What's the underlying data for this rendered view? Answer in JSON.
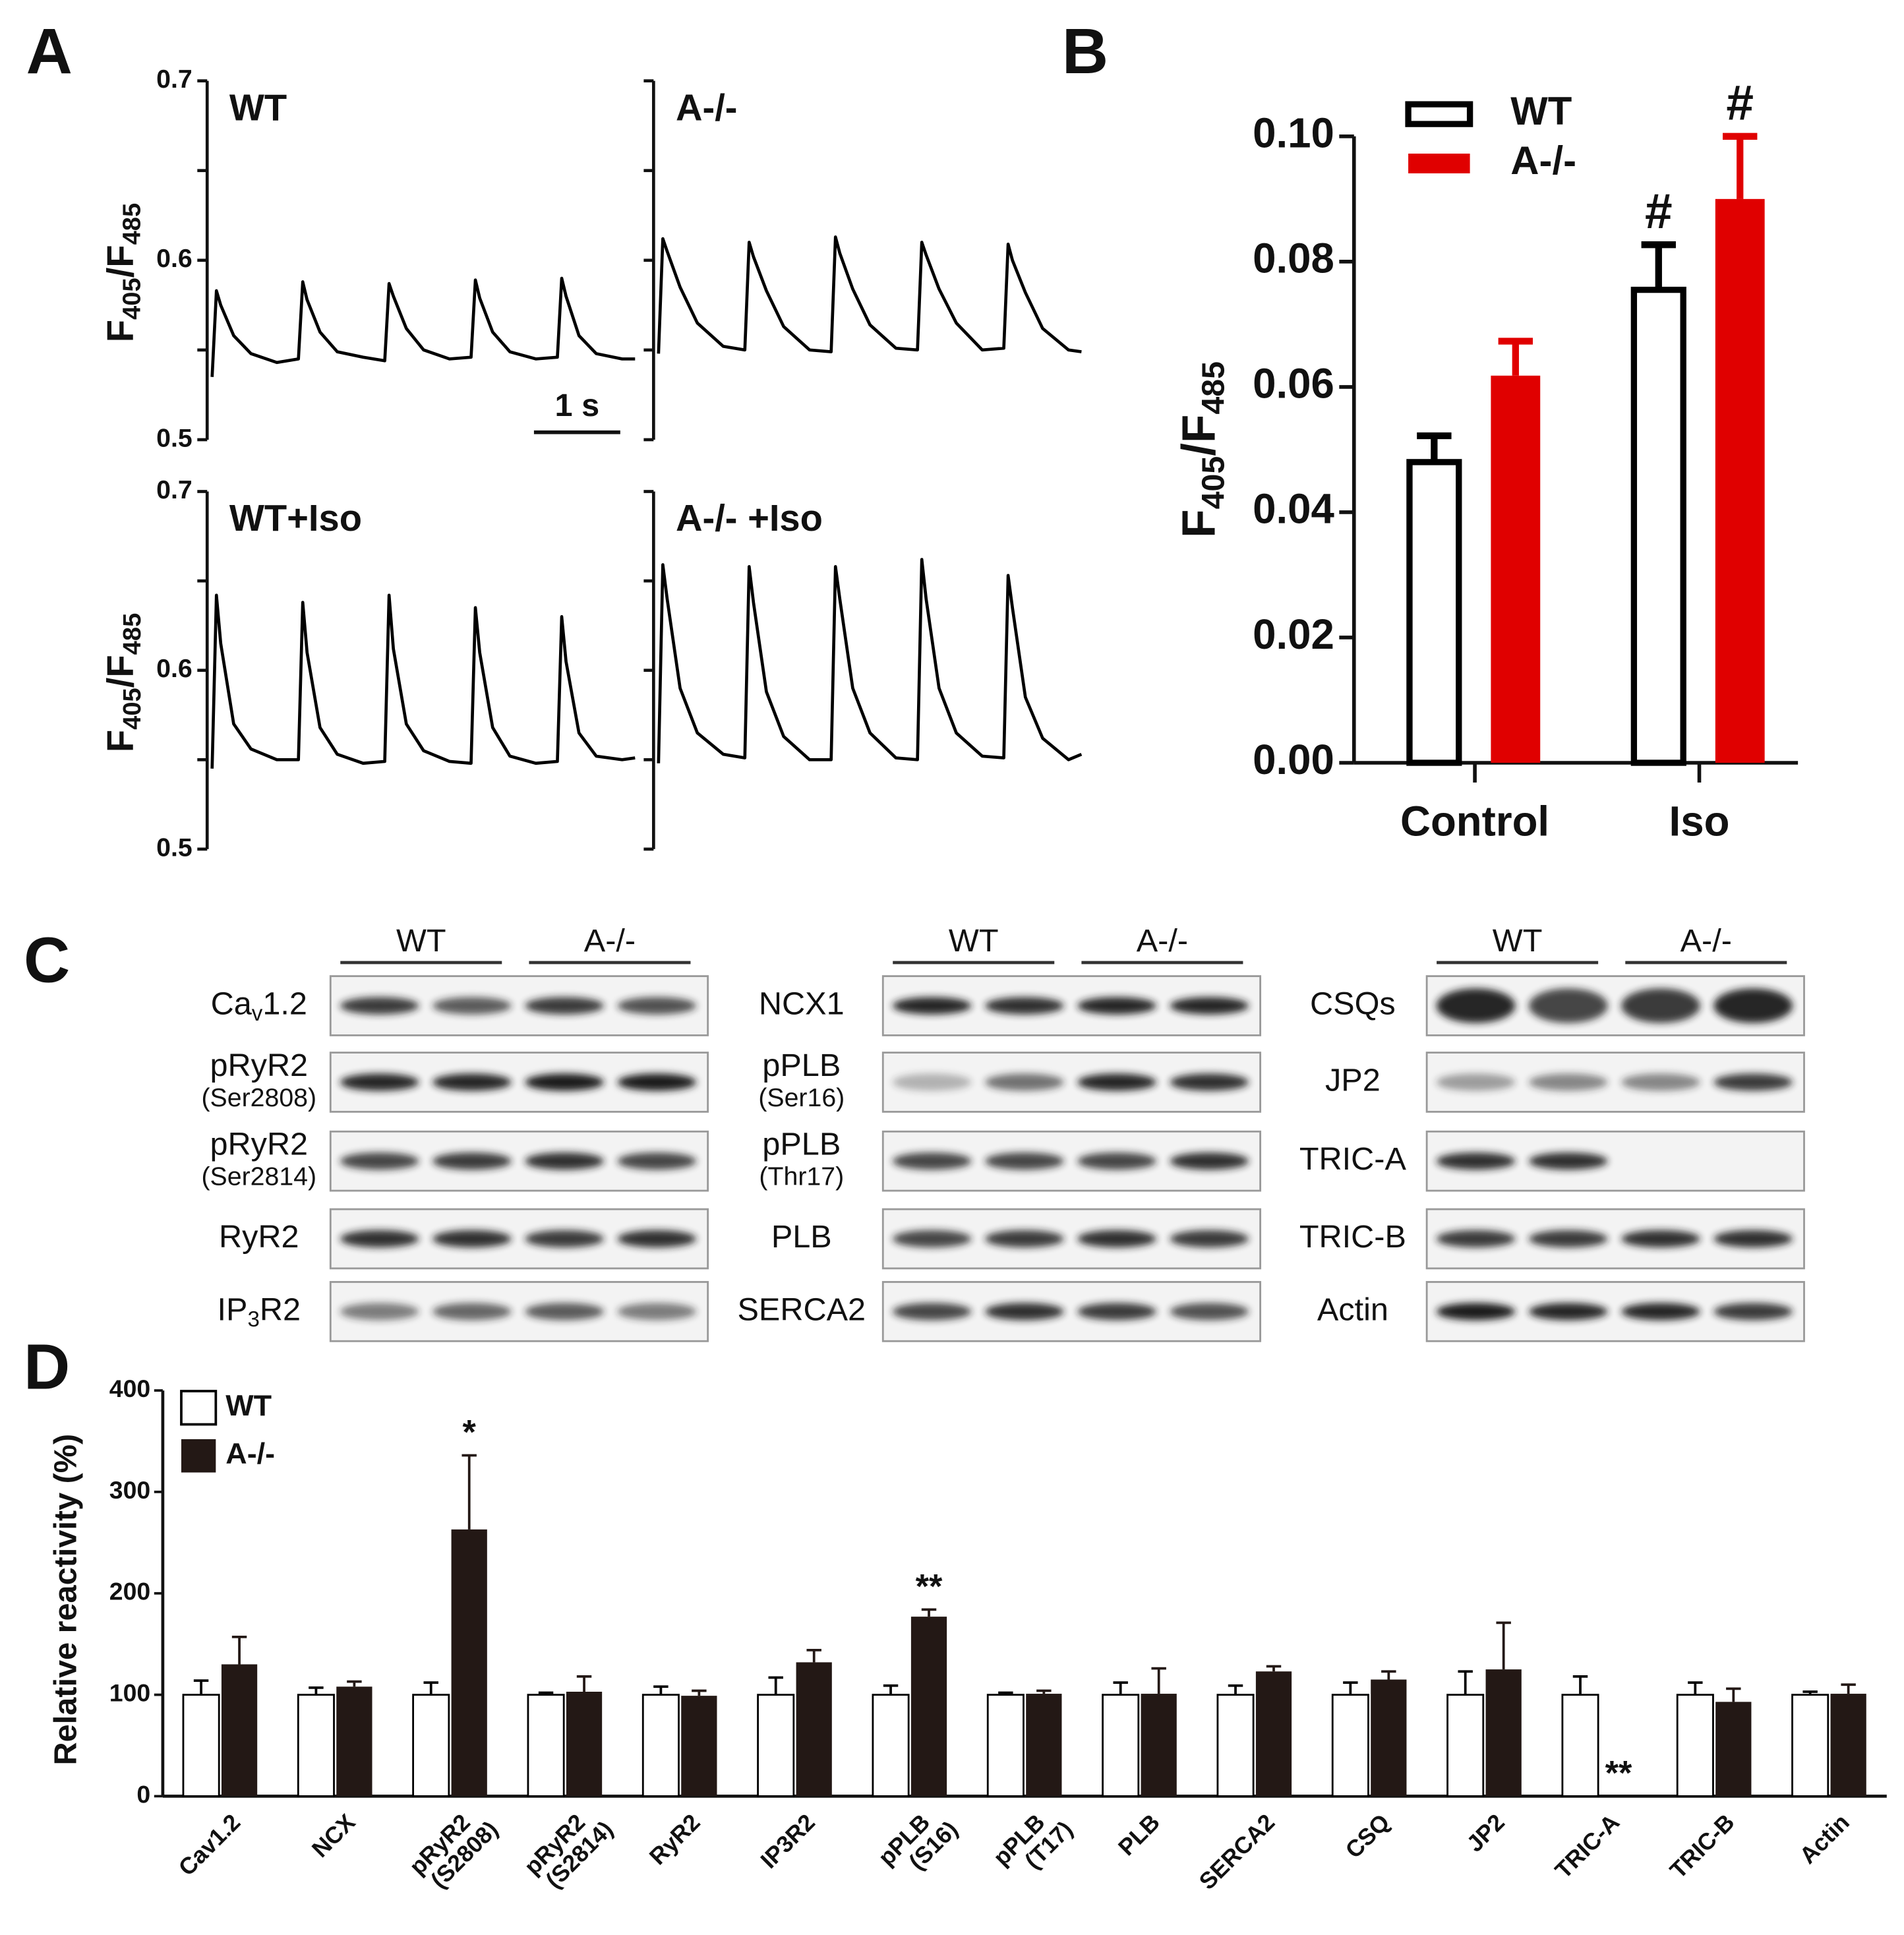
{
  "panels": [
    "A",
    "B",
    "C",
    "D"
  ],
  "chart_data": [
    {
      "type": "line",
      "title": "WT",
      "ylabel": [
        "F",
        "405",
        "/F",
        "485"
      ],
      "color": "#000000",
      "tick_labels": true,
      "xlim": [
        0,
        4.9
      ],
      "ylim": [
        0.5,
        0.7
      ],
      "yticks": [
        0.5,
        0.6,
        0.7
      ],
      "minor_yticks": [
        0.55,
        0.65
      ],
      "scale_bar": {
        "length": 1,
        "label": "1 s"
      },
      "x": [
        0,
        0.05,
        0.1,
        0.25,
        0.45,
        0.75,
        1,
        1.05,
        1.1,
        1.25,
        1.45,
        1.75,
        2,
        2.05,
        2.1,
        2.25,
        2.45,
        2.75,
        3,
        3.05,
        3.1,
        3.25,
        3.45,
        3.75,
        4,
        4.05,
        4.1,
        4.25,
        4.45,
        4.75,
        4.9
      ],
      "values": [
        0.535,
        0.583,
        0.575,
        0.558,
        0.548,
        0.543,
        0.545,
        0.588,
        0.578,
        0.56,
        0.549,
        0.546,
        0.544,
        0.587,
        0.58,
        0.562,
        0.55,
        0.545,
        0.546,
        0.589,
        0.579,
        0.56,
        0.549,
        0.545,
        0.546,
        0.59,
        0.58,
        0.558,
        0.548,
        0.545,
        0.545
      ]
    },
    {
      "type": "line",
      "title": "A-/-",
      "color": "#000000",
      "tick_labels": false,
      "xlim": [
        0,
        4.9
      ],
      "ylim": [
        0.5,
        0.7
      ],
      "yticks": [
        0.5,
        0.6,
        0.7
      ],
      "minor_yticks": [
        0.55,
        0.65
      ],
      "x": [
        0,
        0.05,
        0.1,
        0.25,
        0.45,
        0.75,
        1,
        1.05,
        1.1,
        1.25,
        1.45,
        1.75,
        2,
        2.05,
        2.1,
        2.25,
        2.45,
        2.75,
        3,
        3.05,
        3.1,
        3.25,
        3.45,
        3.75,
        4,
        4.05,
        4.1,
        4.25,
        4.45,
        4.75,
        4.9
      ],
      "values": [
        0.548,
        0.612,
        0.605,
        0.585,
        0.565,
        0.552,
        0.55,
        0.61,
        0.602,
        0.583,
        0.563,
        0.55,
        0.549,
        0.613,
        0.604,
        0.584,
        0.564,
        0.551,
        0.55,
        0.61,
        0.603,
        0.584,
        0.565,
        0.55,
        0.551,
        0.609,
        0.6,
        0.582,
        0.562,
        0.55,
        0.549
      ]
    },
    {
      "type": "line",
      "title": "WT+Iso",
      "ylabel": [
        "F",
        "405",
        "/F",
        "485"
      ],
      "color": "#000000",
      "tick_labels": true,
      "xlim": [
        0,
        4.9
      ],
      "ylim": [
        0.5,
        0.7
      ],
      "yticks": [
        0.5,
        0.6,
        0.7
      ],
      "minor_yticks": [
        0.55,
        0.65
      ],
      "x": [
        0,
        0.05,
        0.1,
        0.25,
        0.45,
        0.75,
        1,
        1.05,
        1.1,
        1.25,
        1.45,
        1.75,
        2,
        2.05,
        2.1,
        2.25,
        2.45,
        2.75,
        3,
        3.05,
        3.1,
        3.25,
        3.45,
        3.75,
        4,
        4.05,
        4.1,
        4.25,
        4.45,
        4.75,
        4.9
      ],
      "values": [
        0.545,
        0.642,
        0.615,
        0.57,
        0.556,
        0.55,
        0.55,
        0.638,
        0.61,
        0.568,
        0.553,
        0.548,
        0.549,
        0.642,
        0.612,
        0.57,
        0.555,
        0.549,
        0.548,
        0.635,
        0.61,
        0.568,
        0.552,
        0.548,
        0.549,
        0.63,
        0.605,
        0.565,
        0.552,
        0.55,
        0.551
      ]
    },
    {
      "type": "line",
      "title": "A-/- +Iso",
      "color": "#000000",
      "tick_labels": false,
      "xlim": [
        0,
        4.9
      ],
      "ylim": [
        0.5,
        0.7
      ],
      "yticks": [
        0.5,
        0.6,
        0.7
      ],
      "minor_yticks": [
        0.55,
        0.65
      ],
      "x": [
        0,
        0.05,
        0.1,
        0.25,
        0.45,
        0.75,
        1,
        1.05,
        1.1,
        1.25,
        1.45,
        1.75,
        2,
        2.05,
        2.1,
        2.25,
        2.45,
        2.75,
        3,
        3.05,
        3.1,
        3.25,
        3.45,
        3.75,
        4,
        4.05,
        4.1,
        4.25,
        4.45,
        4.75,
        4.9
      ],
      "values": [
        0.548,
        0.659,
        0.64,
        0.59,
        0.565,
        0.553,
        0.551,
        0.658,
        0.638,
        0.588,
        0.563,
        0.55,
        0.55,
        0.658,
        0.64,
        0.59,
        0.565,
        0.551,
        0.55,
        0.662,
        0.64,
        0.59,
        0.565,
        0.552,
        0.551,
        0.653,
        0.635,
        0.585,
        0.562,
        0.55,
        0.553
      ]
    },
    {
      "type": "bar",
      "categories": [
        "Control",
        "Iso"
      ],
      "ylabel": [
        "F",
        "405",
        "/F",
        "485"
      ],
      "ylim": [
        0,
        0.1
      ],
      "yticks": [
        {
          "value": 0,
          "label": "0.00"
        },
        0.02,
        0.04,
        0.06,
        0.08,
        {
          "value": 0.1,
          "label": "0.10"
        }
      ],
      "legend": "top-left",
      "series": [
        {
          "name": "WT",
          "color": "#ffffff",
          "stroke": "#000000",
          "values": [
            0.048,
            0.0755
          ],
          "errors": [
            0.0042,
            0.0072
          ],
          "significance": [
            null,
            "#"
          ]
        },
        {
          "name": "A-/-",
          "color": "#e00000",
          "values": [
            0.0618,
            0.09
          ],
          "errors": [
            0.0055,
            0.01
          ],
          "significance": [
            null,
            "#"
          ]
        }
      ]
    },
    {
      "type": "bar",
      "ylabel": "Relative reactivity (%)",
      "ylim": [
        0,
        400
      ],
      "yticks": [
        0,
        100,
        200,
        300,
        400
      ],
      "legend": "top-left",
      "categories": [
        [
          "Cav1.2"
        ],
        [
          "NCX"
        ],
        [
          "pRyR2",
          "(S2808)"
        ],
        [
          "pRyR2",
          "(S2814)"
        ],
        [
          "RyR2"
        ],
        [
          "IP3R2"
        ],
        [
          "pPLB",
          "(S16)"
        ],
        [
          "pPLB",
          "(T17)"
        ],
        [
          "PLB"
        ],
        [
          "SERCA2"
        ],
        [
          "CSQ"
        ],
        [
          "JP2"
        ],
        [
          "TRIC-A"
        ],
        [
          "TRIC-B"
        ],
        [
          "Actin"
        ]
      ],
      "series": [
        {
          "name": "WT",
          "color": "#ffffff",
          "stroke": "#000000",
          "values": [
            100,
            100,
            100,
            100,
            100,
            100,
            100,
            100,
            100,
            100,
            100,
            100,
            100,
            100,
            100
          ],
          "errors": [
            14,
            7,
            12,
            2,
            8,
            17,
            9,
            2,
            12,
            9,
            12,
            23,
            18,
            12,
            3
          ],
          "significance": [
            null,
            null,
            null,
            null,
            null,
            null,
            null,
            null,
            null,
            null,
            null,
            null,
            null,
            null,
            null
          ]
        },
        {
          "name": "A-/-",
          "color": "#231815",
          "values": [
            130,
            108,
            263,
            103,
            99,
            132,
            177,
            101,
            101,
            123,
            115,
            125,
            0,
            93,
            101
          ],
          "errors": [
            27,
            5,
            73,
            15,
            5,
            12,
            7,
            3,
            25,
            5,
            8,
            46,
            null,
            13,
            9
          ],
          "significance": [
            null,
            null,
            "*",
            null,
            null,
            null,
            "**",
            null,
            null,
            null,
            null,
            null,
            "**",
            null,
            null
          ]
        }
      ]
    }
  ],
  "blots": {
    "columns": [
      {
        "groups": [
          "WT",
          "A-/-"
        ],
        "rows": [
          {
            "label": [
              "Ca",
              "v",
              "1.2"
            ]
          },
          {
            "label": [
              "pRyR2"
            ],
            "note": "(Ser2808)"
          },
          {
            "label": [
              "pRyR2"
            ],
            "note": "(Ser2814)"
          },
          {
            "label": [
              "RyR2"
            ]
          },
          {
            "label": [
              "IP",
              "3",
              "R2"
            ]
          }
        ]
      },
      {
        "groups": [
          "WT",
          "A-/-"
        ],
        "rows": [
          {
            "label": [
              "NCX1"
            ]
          },
          {
            "label": [
              "pPLB"
            ],
            "note": "(Ser16)"
          },
          {
            "label": [
              "pPLB"
            ],
            "note": "(Thr17)"
          },
          {
            "label": [
              "PLB"
            ]
          },
          {
            "label": [
              "SERCA2"
            ]
          }
        ]
      },
      {
        "groups": [
          "WT",
          "A-/-"
        ],
        "rows": [
          {
            "label": [
              "CSQs"
            ]
          },
          {
            "label": [
              "JP2"
            ]
          },
          {
            "label": [
              "TRIC-A"
            ]
          },
          {
            "label": [
              "TRIC-B"
            ]
          },
          {
            "label": [
              "Actin"
            ]
          }
        ]
      }
    ]
  }
}
